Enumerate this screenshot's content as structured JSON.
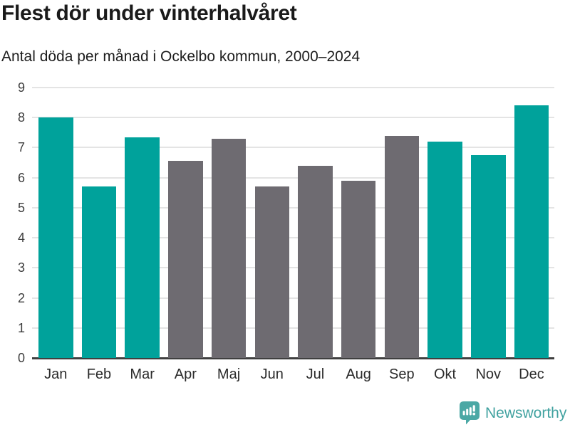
{
  "chart_data": {
    "type": "bar",
    "title": "Flest dör under vinterhalvåret",
    "subtitle": "Antal döda per månad i Ockelbo kommun, 2000–2024",
    "categories": [
      "Jan",
      "Feb",
      "Mar",
      "Apr",
      "Maj",
      "Jun",
      "Jul",
      "Aug",
      "Sep",
      "Okt",
      "Nov",
      "Dec"
    ],
    "values": [
      8.0,
      5.7,
      7.35,
      6.55,
      7.3,
      5.7,
      6.4,
      5.9,
      7.4,
      7.2,
      6.75,
      8.4
    ],
    "highlighted": [
      true,
      true,
      true,
      false,
      false,
      false,
      false,
      false,
      false,
      true,
      true,
      true
    ],
    "highlight_color": "#00A29B",
    "base_color": "#6E6B71",
    "xlabel": "",
    "ylabel": "",
    "ylim": [
      0,
      9
    ],
    "yticks": [
      0,
      1,
      2,
      3,
      4,
      5,
      6,
      7,
      8,
      9
    ],
    "grid": "horizontal",
    "legend": "none"
  },
  "colors": {
    "gridline": "#E4E4E4",
    "baseline": "#3F3F3F",
    "brand_teal": "#41A2A0"
  },
  "footer": {
    "brand": "Newsworthy"
  }
}
